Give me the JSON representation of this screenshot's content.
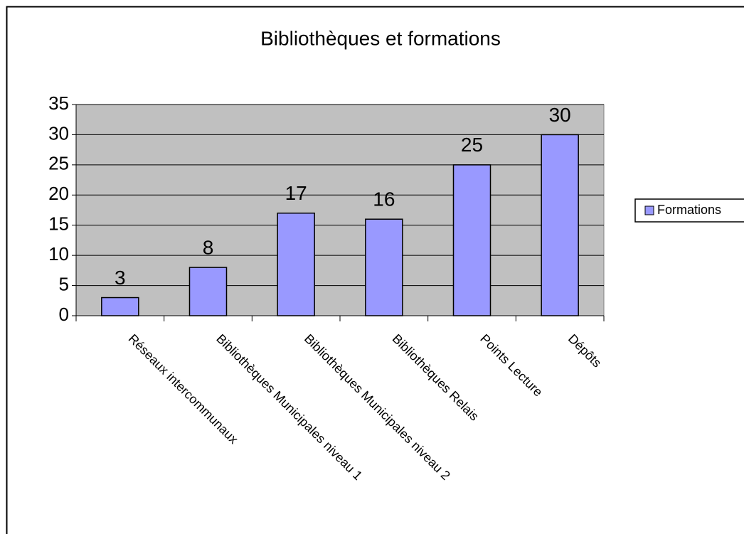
{
  "chart_data": {
    "type": "bar",
    "title": "Bibliothèques et formations",
    "categories": [
      "Réseaux intercommunaux",
      "Bibliothèques Municipales niveau 1",
      "Bibliothèques Municipales niveau 2",
      "Bibliothèques Relais",
      "Points Lecture",
      "Dépôts"
    ],
    "series": [
      {
        "name": "Formations",
        "color": "#9999ff",
        "values": [
          3,
          8,
          17,
          16,
          25,
          30
        ]
      }
    ],
    "ylim": [
      0,
      35
    ],
    "yticks": [
      0,
      5,
      10,
      15,
      20,
      25,
      30,
      35
    ],
    "grid": true,
    "legend": "right"
  }
}
